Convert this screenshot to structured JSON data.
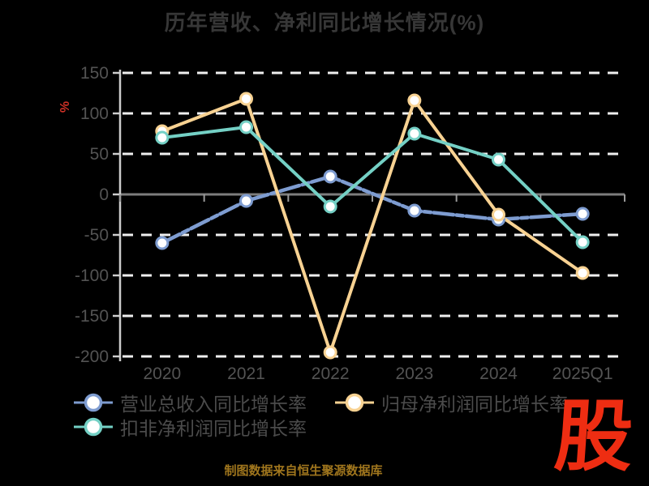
{
  "title": "历年营收、净利同比增长情况(%)",
  "source_note": "制图数据来自恒生聚源数据库",
  "logo_text": "股",
  "colors": {
    "background": "#000000",
    "title": "#373737",
    "axis_label": "#535353",
    "grid": "#efefef",
    "zero_line": "#7d7d7d",
    "axis_line": "#cdcdcd",
    "x_tick": "#9a9a9a",
    "legend_text": "#4b4b4b",
    "percent_label": "#cf3126",
    "source_text": "#a0761d",
    "logo": "#ee2d12",
    "marker_fill": "#ffffff",
    "blue_dash_underlay": "#16294a"
  },
  "chart_data": {
    "type": "line",
    "title": "历年营收、净利同比增长情况(%)",
    "categories": [
      "2020",
      "2021",
      "2022",
      "2023",
      "2024",
      "2025Q1"
    ],
    "series": [
      {
        "name": "营业总收入同比增长率",
        "color": "#7e9cd0",
        "style": "dashed",
        "values": [
          -60,
          -8,
          22,
          -20,
          -31,
          -24
        ]
      },
      {
        "name": "归母净利润同比增长率",
        "color": "#f8d292",
        "style": "solid",
        "values": [
          78,
          118,
          -195,
          116,
          -25,
          -97
        ]
      },
      {
        "name": "扣非净利润同比增长率",
        "color": "#74d0c5",
        "style": "solid",
        "values": [
          70,
          83,
          -15,
          75,
          43,
          -59
        ]
      }
    ],
    "y_ticks": [
      150,
      100,
      50,
      0,
      -50,
      -100,
      -150,
      -200
    ],
    "ylim": [
      -200,
      150
    ],
    "ylabel": "%",
    "xlabel": "",
    "grid": "horizontal-dashed-white, solid zero line",
    "legend_position": "bottom-left"
  }
}
